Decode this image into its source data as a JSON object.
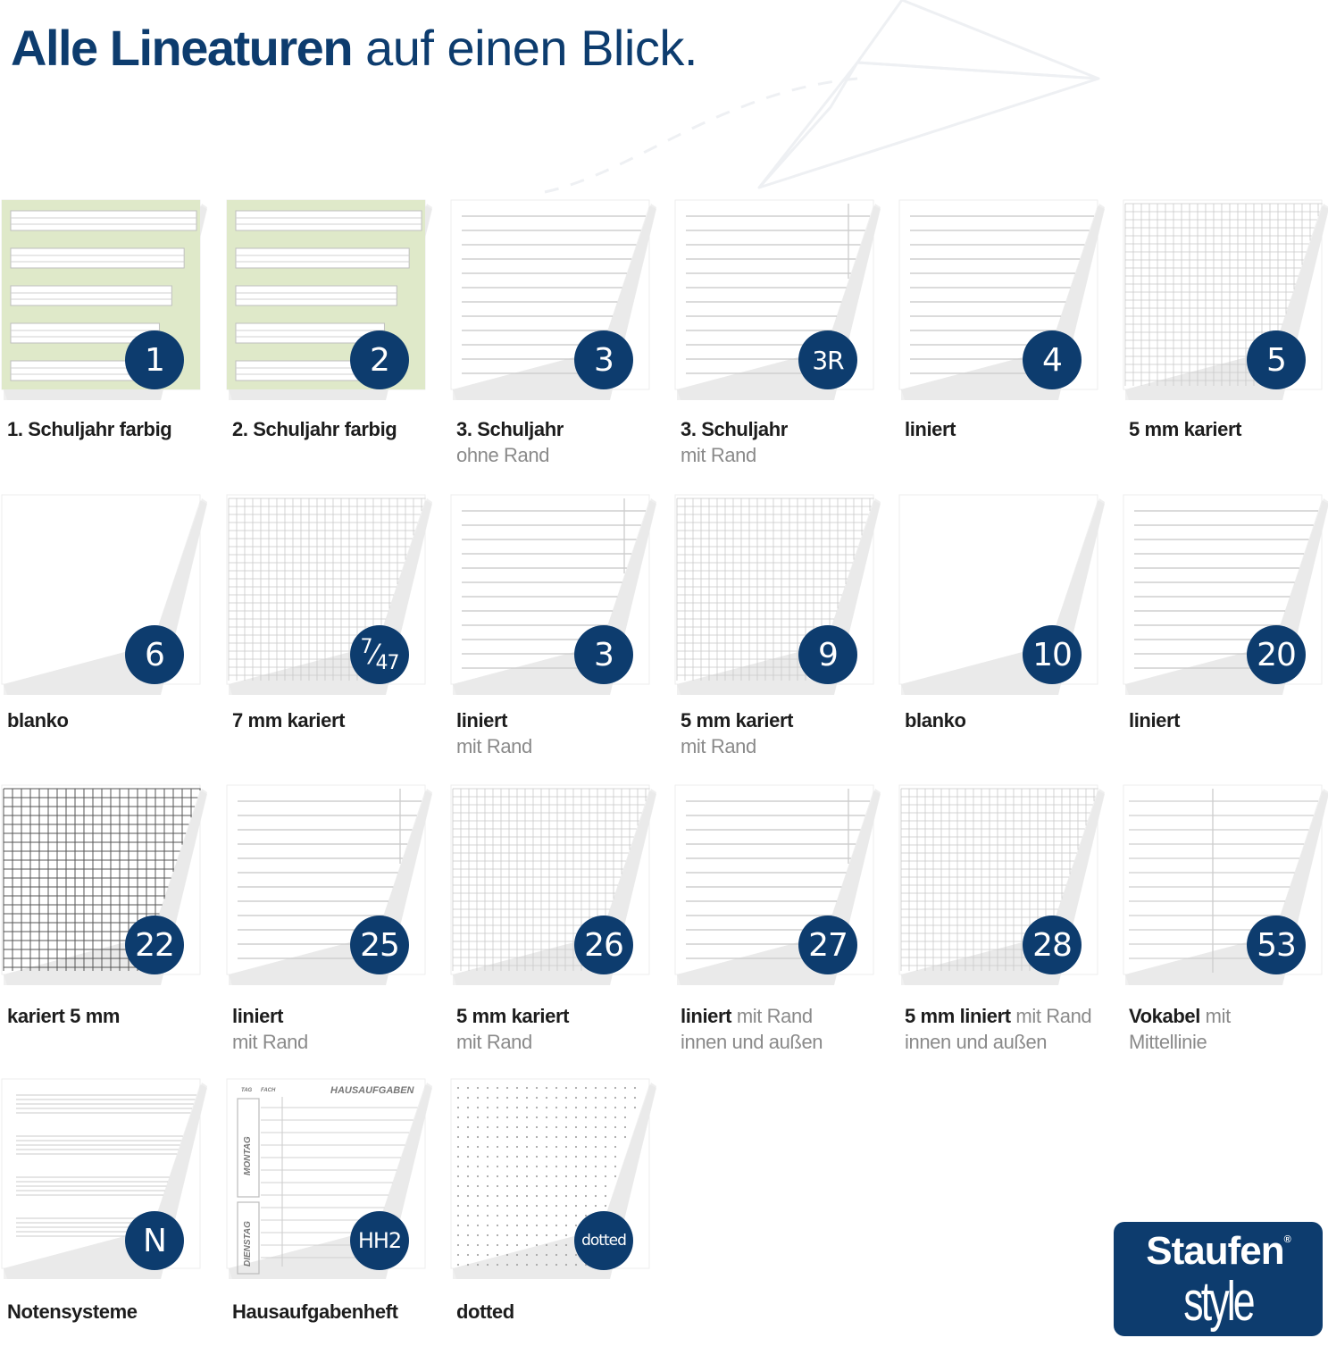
{
  "header": {
    "title_bold": "Alle Lineaturen",
    "title_rest": "auf einen Blick."
  },
  "colors": {
    "brand": "#0d3c6e",
    "highlight": "#dfe9c9",
    "line": "#cfcfcf",
    "grid_dark": "#555555"
  },
  "tiles": [
    {
      "badge": "1",
      "title": "1. Schuljahr farbig",
      "sub": "",
      "pattern": "school-color"
    },
    {
      "badge": "2",
      "title": "2. Schuljahr farbig",
      "sub": "",
      "pattern": "school-color"
    },
    {
      "badge": "3",
      "title": "3. Schuljahr",
      "sub": "ohne Rand",
      "pattern": "lines"
    },
    {
      "badge": "3R",
      "title": "3. Schuljahr",
      "sub": "mit Rand",
      "pattern": "lines-margin"
    },
    {
      "badge": "4",
      "title": "liniert",
      "sub": "",
      "pattern": "lines"
    },
    {
      "badge": "5",
      "title": "5 mm kariert",
      "sub": "",
      "pattern": "grid"
    },
    {
      "badge": "6",
      "title": "blanko",
      "sub": "",
      "pattern": "blank"
    },
    {
      "badge_num": "7",
      "badge_den": "47",
      "title": "7 mm kariert",
      "sub": "",
      "pattern": "grid"
    },
    {
      "badge": "3",
      "title": "liniert",
      "sub": "mit Rand",
      "pattern": "lines-margin"
    },
    {
      "badge": "9",
      "title": "5 mm kariert",
      "sub": "mit Rand",
      "pattern": "grid"
    },
    {
      "badge": "10",
      "title": "blanko",
      "sub": "",
      "pattern": "blank"
    },
    {
      "badge": "20",
      "title": "liniert",
      "sub": "",
      "pattern": "lines"
    },
    {
      "badge": "22",
      "title": "kariert 5 mm",
      "sub": "",
      "pattern": "grid-dark"
    },
    {
      "badge": "25",
      "title": "liniert",
      "sub": "mit Rand",
      "pattern": "lines-margin"
    },
    {
      "badge": "26",
      "title": "5 mm kariert",
      "sub": "mit Rand",
      "pattern": "grid"
    },
    {
      "badge": "27",
      "title": "liniert",
      "title_suffix": "mit Rand",
      "sub": "innen und außen",
      "pattern": "lines-margin"
    },
    {
      "badge": "28",
      "title": "5 mm liniert",
      "title_suffix": "mit Rand",
      "sub": "innen und außen",
      "pattern": "grid"
    },
    {
      "badge": "53",
      "title": "Vokabel",
      "title_suffix": "mit",
      "sub": "Mittellinie",
      "pattern": "vocab"
    },
    {
      "badge": "N",
      "title": "Notensysteme",
      "sub": "",
      "pattern": "music"
    },
    {
      "badge": "HH2",
      "title": "Hausaufgabenheft",
      "sub": "",
      "pattern": "homework",
      "hh_title": "HAUSAUFGABEN",
      "hh_col1": "TAG",
      "hh_col2": "FACH",
      "hh_day1": "MONTAG",
      "hh_day2": "DIENSTAG"
    },
    {
      "badge": "dotted",
      "title": "dotted",
      "sub": "",
      "pattern": "dots"
    }
  ],
  "logo": {
    "line1": "Staufen",
    "line2": "style",
    "mark": "®"
  }
}
